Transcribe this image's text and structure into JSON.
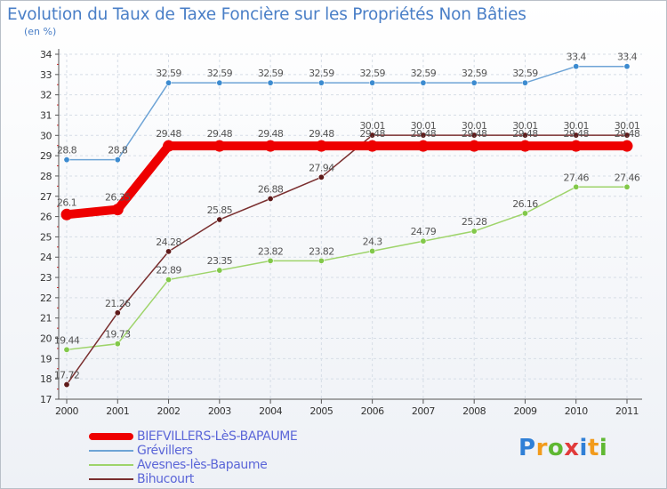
{
  "chart_data": {
    "type": "line",
    "title": "Evolution du Taux de Taxe Foncière sur les Propriétés Non Bâties",
    "subtitle": "(en %)",
    "categories": [
      "2000",
      "2001",
      "2002",
      "2003",
      "2004",
      "2005",
      "2006",
      "2007",
      "2008",
      "2009",
      "2010",
      "2011"
    ],
    "ylim": [
      17,
      34
    ],
    "yticks": [
      "17",
      "18",
      "19",
      "20",
      "21",
      "22",
      "23",
      "24",
      "25",
      "26",
      "27",
      "28",
      "29",
      "30",
      "31",
      "32",
      "33",
      "34"
    ],
    "grid": true,
    "series": [
      {
        "name": "Grévillers",
        "color": "#6ea4d6",
        "point_color": "#3c8bd0",
        "values": [
          28.8,
          28.8,
          32.59,
          32.59,
          32.59,
          32.59,
          32.59,
          32.59,
          32.59,
          32.59,
          33.4,
          33.4
        ],
        "labels": [
          "28.8",
          "28.8",
          "32.59",
          "32.59",
          "32.59",
          "32.59",
          "32.59",
          "32.59",
          "32.59",
          "32.59",
          "33.4",
          "33.4"
        ]
      },
      {
        "name": "Avesnes-lès-Bapaume",
        "color": "#9ed46a",
        "point_color": "#82c84a",
        "values": [
          19.44,
          19.73,
          22.89,
          23.35,
          23.82,
          23.82,
          24.3,
          24.79,
          25.28,
          26.16,
          27.46,
          27.46
        ],
        "labels": [
          "19.44",
          "19.73",
          "22.89",
          "23.35",
          "23.82",
          "23.82",
          "24.3",
          "24.79",
          "25.28",
          "26.16",
          "27.46",
          "27.46"
        ]
      },
      {
        "name": "Bihucourt",
        "color": "#7a2f2f",
        "point_color": "#5e1a1a",
        "values": [
          17.72,
          21.26,
          24.28,
          25.85,
          26.88,
          27.94,
          30.01,
          30.01,
          30.01,
          30.01,
          30.01,
          30.01
        ],
        "labels": [
          "17.72",
          "21.26",
          "24.28",
          "25.85",
          "26.88",
          "27.94",
          "30.01",
          "30.01",
          "30.01",
          "30.01",
          "30.01",
          "30.01"
        ]
      },
      {
        "name": "BIEFVILLERS-LèS-BAPAUME",
        "color": "#ee0000",
        "point_color": "#ee0000",
        "thick": true,
        "values": [
          26.1,
          26.35,
          29.48,
          29.48,
          29.48,
          29.48,
          29.48,
          29.48,
          29.48,
          29.48,
          29.48,
          29.48
        ],
        "labels": [
          "26.1",
          "26.35",
          "29.48",
          "29.48",
          "29.48",
          "29.48",
          "29.48",
          "29.48",
          "29.48",
          "29.48",
          "29.48",
          "29.48"
        ]
      }
    ]
  },
  "legend": {
    "items": [
      {
        "label": "BIEFVILLERS-LèS-BAPAUME",
        "color": "#ee0000"
      },
      {
        "label": "Grévillers",
        "color": "#6ea4d6"
      },
      {
        "label": "Avesnes-lès-Bapaume",
        "color": "#9ed46a"
      },
      {
        "label": "Bihucourt",
        "color": "#7a2f2f"
      }
    ]
  },
  "logo": {
    "letters": [
      "P",
      "r",
      "o",
      "x",
      "i",
      "t",
      "i"
    ],
    "colors": [
      "#2f7fd6",
      "#f29b1c",
      "#5fb832",
      "#e13a3a",
      "#2f7fd6",
      "#f29b1c",
      "#5fb832"
    ]
  }
}
